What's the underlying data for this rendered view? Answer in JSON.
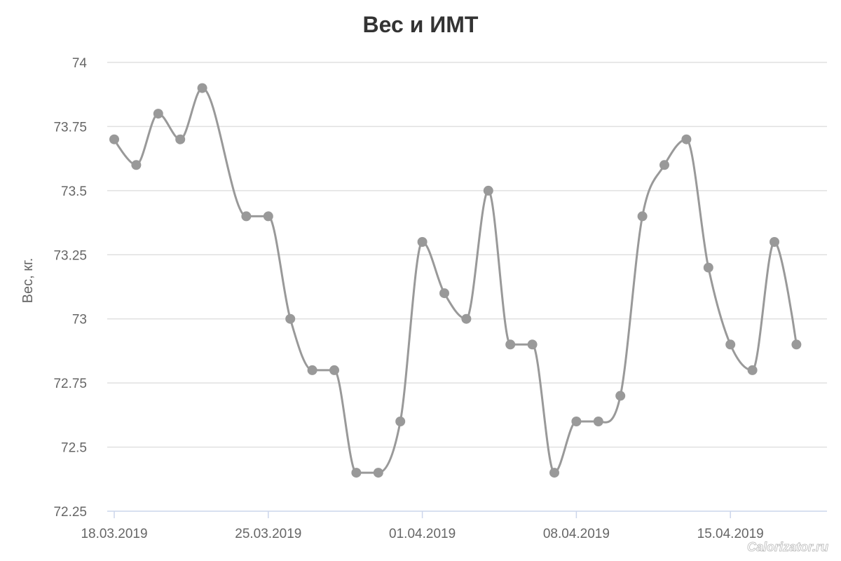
{
  "chart_data": {
    "type": "line",
    "title": "Вес и ИМТ",
    "xlabel": "",
    "ylabel": "Вес, кг.",
    "ylim": [
      72.25,
      74
    ],
    "y_ticks": [
      "72.25",
      "72.5",
      "72.75",
      "73",
      "73.25",
      "73.5",
      "73.75",
      "74"
    ],
    "x_ticks": [
      "18.03.2019",
      "25.03.2019",
      "01.04.2019",
      "08.04.2019",
      "15.04.2019"
    ],
    "xlim": [
      "18.03.2019",
      "21.04.2019"
    ],
    "grid": true,
    "legend": "none",
    "smooth": true,
    "colors": {
      "line": "#999999",
      "marker": "#999999"
    },
    "series": [
      {
        "points": [
          {
            "x": "18.03.2019",
            "y": 73.7
          },
          {
            "x": "19.03.2019",
            "y": 73.6
          },
          {
            "x": "20.03.2019",
            "y": 73.8
          },
          {
            "x": "21.03.2019",
            "y": 73.7
          },
          {
            "x": "22.03.2019",
            "y": 73.9
          },
          {
            "x": "24.03.2019",
            "y": 73.4
          },
          {
            "x": "25.03.2019",
            "y": 73.4
          },
          {
            "x": "26.03.2019",
            "y": 73.0
          },
          {
            "x": "27.03.2019",
            "y": 72.8
          },
          {
            "x": "28.03.2019",
            "y": 72.8
          },
          {
            "x": "29.03.2019",
            "y": 72.4
          },
          {
            "x": "30.03.2019",
            "y": 72.4
          },
          {
            "x": "31.03.2019",
            "y": 72.6
          },
          {
            "x": "01.04.2019",
            "y": 73.3
          },
          {
            "x": "02.04.2019",
            "y": 73.1
          },
          {
            "x": "03.04.2019",
            "y": 73.0
          },
          {
            "x": "04.04.2019",
            "y": 73.5
          },
          {
            "x": "05.04.2019",
            "y": 72.9
          },
          {
            "x": "06.04.2019",
            "y": 72.9
          },
          {
            "x": "07.04.2019",
            "y": 72.4
          },
          {
            "x": "08.04.2019",
            "y": 72.6
          },
          {
            "x": "09.04.2019",
            "y": 72.6
          },
          {
            "x": "10.04.2019",
            "y": 72.7
          },
          {
            "x": "11.04.2019",
            "y": 73.4
          },
          {
            "x": "12.04.2019",
            "y": 73.6
          },
          {
            "x": "13.04.2019",
            "y": 73.7
          },
          {
            "x": "14.04.2019",
            "y": 73.2
          },
          {
            "x": "15.04.2019",
            "y": 72.9
          },
          {
            "x": "16.04.2019",
            "y": 72.8
          },
          {
            "x": "17.04.2019",
            "y": 73.3
          },
          {
            "x": "18.04.2019",
            "y": 72.9
          }
        ]
      }
    ]
  },
  "watermark": "Calorizator.ru"
}
